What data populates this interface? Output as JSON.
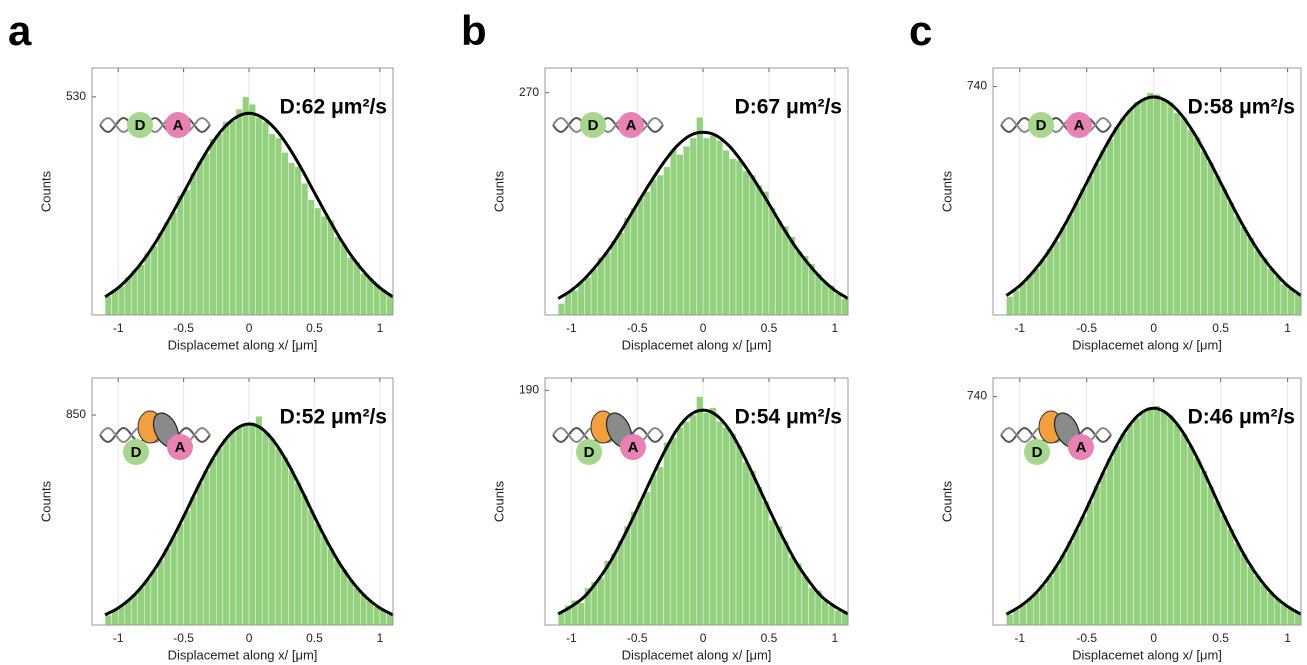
{
  "chart_data": [
    {
      "type": "histogram",
      "panel_label": "a",
      "annotation": "D:62 μm²/s",
      "icon_labels": [
        "D",
        "A"
      ],
      "protein_bound": false,
      "xlabel": "Displacemet along x/ [μm]",
      "ylabel": "Counts",
      "color": "#93d17e",
      "bins": [
        -1.1,
        -1.05,
        -1,
        -0.95,
        -0.9,
        -0.85,
        -0.8,
        -0.75,
        -0.7,
        -0.65,
        -0.6,
        -0.55,
        -0.5,
        -0.45,
        -0.4,
        -0.35,
        -0.3,
        -0.25,
        -0.2,
        -0.15,
        -0.1,
        -0.05,
        0,
        0.05,
        0.1,
        0.15,
        0.2,
        0.25,
        0.3,
        0.35,
        0.4,
        0.45,
        0.5,
        0.55,
        0.6,
        0.65,
        0.7,
        0.75,
        0.8,
        0.85,
        0.9,
        0.95,
        1,
        1.05,
        1.1
      ],
      "values": [
        46,
        62,
        70,
        92,
        108,
        122,
        150,
        168,
        200,
        226,
        250,
        290,
        305,
        345,
        372,
        392,
        428,
        440,
        470,
        472,
        500,
        530,
        512,
        480,
        470,
        440,
        430,
        395,
        370,
        360,
        320,
        280,
        260,
        240,
        230,
        190,
        172,
        140,
        128,
        100,
        90,
        75,
        60,
        50
      ],
      "fit": {
        "x": [
          -1.1,
          -1,
          -0.9,
          -0.8,
          -0.7,
          -0.6,
          -0.5,
          -0.4,
          -0.3,
          -0.2,
          -0.1,
          0,
          0.1,
          0.2,
          0.3,
          0.4,
          0.5,
          0.6,
          0.7,
          0.8,
          0.9,
          1,
          1.1
        ],
        "values": [
          44,
          66,
          97,
          136,
          184,
          239,
          297,
          356,
          409,
          452,
          480,
          490,
          480,
          452,
          409,
          356,
          297,
          239,
          184,
          136,
          97,
          66,
          44
        ],
        "color": "#000000"
      },
      "xlim": [
        -1.2,
        1.1
      ],
      "ylim": [
        0,
        600
      ],
      "xticks": [
        -1,
        -0.5,
        0,
        0.5,
        1
      ],
      "yticks": [
        530
      ],
      "grid": "x"
    },
    {
      "type": "histogram",
      "panel_label": "b",
      "annotation": "D:67 μm²/s",
      "icon_labels": [
        "D",
        "A"
      ],
      "protein_bound": false,
      "xlabel": "Displacemet along x/ [μm]",
      "ylabel": "Counts",
      "color": "#93d17e",
      "bins": [
        -1.1,
        -1.05,
        -1,
        -0.95,
        -0.9,
        -0.85,
        -0.8,
        -0.75,
        -0.7,
        -0.65,
        -0.6,
        -0.55,
        -0.5,
        -0.45,
        -0.4,
        -0.35,
        -0.3,
        -0.25,
        -0.2,
        -0.15,
        -0.1,
        -0.05,
        0,
        0.05,
        0.1,
        0.15,
        0.2,
        0.25,
        0.3,
        0.35,
        0.4,
        0.45,
        0.5,
        0.55,
        0.6,
        0.65,
        0.7,
        0.75,
        0.8,
        0.85,
        0.9,
        0.95,
        1,
        1.05,
        1.1
      ],
      "values": [
        14,
        28,
        30,
        40,
        46,
        56,
        70,
        76,
        90,
        100,
        118,
        130,
        142,
        150,
        165,
        170,
        180,
        200,
        195,
        205,
        215,
        240,
        215,
        218,
        212,
        200,
        190,
        188,
        175,
        170,
        158,
        150,
        130,
        115,
        108,
        95,
        78,
        72,
        62,
        50,
        40,
        36,
        26,
        20
      ],
      "fit": {
        "x": [
          -1.1,
          -1,
          -0.9,
          -0.8,
          -0.7,
          -0.6,
          -0.5,
          -0.4,
          -0.3,
          -0.2,
          -0.1,
          0,
          0.1,
          0.2,
          0.3,
          0.4,
          0.5,
          0.6,
          0.7,
          0.8,
          0.9,
          1,
          1.1
        ],
        "values": [
          20,
          30,
          44,
          62,
          83,
          108,
          135,
          161,
          185,
          205,
          218,
          222,
          218,
          205,
          185,
          161,
          135,
          108,
          83,
          62,
          44,
          30,
          20
        ],
        "color": "#000000"
      },
      "xlim": [
        -1.2,
        1.1
      ],
      "ylim": [
        0,
        300
      ],
      "xticks": [
        -1,
        -0.5,
        0,
        0.5,
        1
      ],
      "yticks": [
        270
      ],
      "grid": "x"
    },
    {
      "type": "histogram",
      "panel_label": "c",
      "annotation": "D:58 μm²/s",
      "icon_labels": [
        "D",
        "A"
      ],
      "protein_bound": false,
      "xlabel": "Displacemet along x/ [μm]",
      "ylabel": "Counts",
      "color": "#93d17e",
      "bins": [
        -1.1,
        -1.05,
        -1,
        -0.95,
        -0.9,
        -0.85,
        -0.8,
        -0.75,
        -0.7,
        -0.65,
        -0.6,
        -0.55,
        -0.5,
        -0.45,
        -0.4,
        -0.35,
        -0.3,
        -0.25,
        -0.2,
        -0.15,
        -0.1,
        -0.05,
        0,
        0.05,
        0.1,
        0.15,
        0.2,
        0.25,
        0.3,
        0.35,
        0.4,
        0.45,
        0.5,
        0.55,
        0.6,
        0.65,
        0.7,
        0.75,
        0.8,
        0.85,
        0.9,
        0.95,
        1,
        1.05,
        1.1
      ],
      "values": [
        60,
        80,
        105,
        130,
        150,
        180,
        215,
        240,
        285,
        325,
        365,
        410,
        450,
        490,
        535,
        570,
        610,
        640,
        665,
        690,
        700,
        720,
        715,
        700,
        690,
        655,
        640,
        600,
        575,
        530,
        495,
        450,
        410,
        365,
        320,
        285,
        250,
        210,
        185,
        150,
        125,
        100,
        85,
        68
      ],
      "fit": {
        "x": [
          -1.1,
          -1,
          -0.9,
          -0.8,
          -0.7,
          -0.6,
          -0.5,
          -0.4,
          -0.3,
          -0.2,
          -0.1,
          0,
          0.1,
          0.2,
          0.3,
          0.4,
          0.5,
          0.6,
          0.7,
          0.8,
          0.9,
          1,
          1.1
        ],
        "values": [
          63,
          95,
          140,
          196,
          265,
          344,
          429,
          513,
          590,
          652,
          692,
          706,
          692,
          652,
          590,
          513,
          429,
          344,
          265,
          196,
          140,
          95,
          63
        ],
        "color": "#000000"
      },
      "xlim": [
        -1.2,
        1.1
      ],
      "ylim": [
        0,
        800
      ],
      "xticks": [
        -1,
        -0.5,
        0,
        0.5,
        1
      ],
      "yticks": [
        740
      ],
      "grid": "x"
    },
    {
      "type": "histogram",
      "annotation": "D:52 μm²/s",
      "icon_labels": [
        "D",
        "A"
      ],
      "protein_bound": true,
      "xlabel": "Displacemet along x/ [μm]",
      "ylabel": "Counts",
      "color": "#93d17e",
      "bins": [
        -1.1,
        -1.05,
        -1,
        -0.95,
        -0.9,
        -0.85,
        -0.8,
        -0.75,
        -0.7,
        -0.65,
        -0.6,
        -0.55,
        -0.5,
        -0.45,
        -0.4,
        -0.35,
        -0.3,
        -0.25,
        -0.2,
        -0.15,
        -0.1,
        -0.05,
        0,
        0.05,
        0.1,
        0.15,
        0.2,
        0.25,
        0.3,
        0.35,
        0.4,
        0.45,
        0.5,
        0.55,
        0.6,
        0.65,
        0.7,
        0.75,
        0.8,
        0.85,
        0.9,
        0.95,
        1,
        1.05,
        1.1
      ],
      "values": [
        40,
        62,
        80,
        100,
        125,
        150,
        185,
        220,
        262,
        310,
        362,
        410,
        462,
        520,
        575,
        625,
        675,
        715,
        755,
        785,
        800,
        815,
        820,
        845,
        780,
        755,
        715,
        680,
        625,
        575,
        525,
        465,
        410,
        360,
        310,
        262,
        225,
        185,
        150,
        125,
        100,
        75,
        60,
        45
      ],
      "fit": {
        "x": [
          -1.1,
          -1,
          -0.9,
          -0.8,
          -0.7,
          -0.6,
          -0.5,
          -0.4,
          -0.3,
          -0.2,
          -0.1,
          0,
          0.1,
          0.2,
          0.3,
          0.4,
          0.5,
          0.6,
          0.7,
          0.8,
          0.9,
          1,
          1.1
        ],
        "values": [
          41,
          69,
          110,
          168,
          243,
          335,
          439,
          549,
          652,
          737,
          794,
          814,
          794,
          737,
          652,
          549,
          439,
          335,
          243,
          168,
          110,
          69,
          41
        ],
        "color": "#000000"
      },
      "xlim": [
        -1.2,
        1.1
      ],
      "ylim": [
        0,
        1000
      ],
      "xticks": [
        -1,
        -0.5,
        0,
        0.5,
        1
      ],
      "yticks": [
        850
      ],
      "grid": "x"
    },
    {
      "type": "histogram",
      "annotation": "D:54 μm²/s",
      "icon_labels": [
        "D",
        "A"
      ],
      "protein_bound": true,
      "xlabel": "Displacemet along x/ [μm]",
      "ylabel": "Counts",
      "color": "#93d17e",
      "bins": [
        -1.1,
        -1.05,
        -1,
        -0.95,
        -0.9,
        -0.85,
        -0.8,
        -0.75,
        -0.7,
        -0.65,
        -0.6,
        -0.55,
        -0.5,
        -0.45,
        -0.4,
        -0.35,
        -0.3,
        -0.25,
        -0.2,
        -0.15,
        -0.1,
        -0.05,
        0,
        0.05,
        0.1,
        0.15,
        0.2,
        0.25,
        0.3,
        0.35,
        0.4,
        0.45,
        0.5,
        0.55,
        0.6,
        0.65,
        0.7,
        0.75,
        0.8,
        0.85,
        0.9,
        0.95,
        1,
        1.05,
        1.1
      ],
      "values": [
        10,
        16,
        20,
        18,
        30,
        35,
        38,
        52,
        58,
        68,
        80,
        92,
        100,
        108,
        122,
        128,
        148,
        152,
        160,
        165,
        170,
        185,
        172,
        176,
        165,
        160,
        155,
        145,
        132,
        125,
        112,
        100,
        85,
        80,
        68,
        55,
        50,
        40,
        30,
        28,
        20,
        16,
        12,
        10
      ],
      "fit": {
        "x": [
          -1.1,
          -1,
          -0.9,
          -0.8,
          -0.7,
          -0.6,
          -0.5,
          -0.4,
          -0.3,
          -0.2,
          -0.1,
          0,
          0.1,
          0.2,
          0.3,
          0.4,
          0.5,
          0.6,
          0.7,
          0.8,
          0.9,
          1,
          1.1
        ],
        "values": [
          9,
          15,
          23,
          36,
          52,
          72,
          94,
          117,
          139,
          158,
          170,
          174,
          170,
          158,
          139,
          117,
          94,
          72,
          52,
          36,
          23,
          15,
          9
        ],
        "color": "#000000"
      },
      "xlim": [
        -1.2,
        1.1
      ],
      "ylim": [
        0,
        200
      ],
      "xticks": [
        -1,
        -0.5,
        0,
        0.5,
        1
      ],
      "yticks": [
        190
      ],
      "grid": "x"
    },
    {
      "type": "histogram",
      "annotation": "D:46 μm²/s",
      "icon_labels": [
        "D",
        "A"
      ],
      "protein_bound": true,
      "xlabel": "Displacemet along x/ [μm]",
      "ylabel": "Counts",
      "color": "#93d17e",
      "bins": [
        -1.1,
        -1.05,
        -1,
        -0.95,
        -0.9,
        -0.85,
        -0.8,
        -0.75,
        -0.7,
        -0.65,
        -0.6,
        -0.55,
        -0.5,
        -0.45,
        -0.4,
        -0.35,
        -0.3,
        -0.25,
        -0.2,
        -0.15,
        -0.1,
        -0.05,
        0,
        0.05,
        0.1,
        0.15,
        0.2,
        0.25,
        0.3,
        0.35,
        0.4,
        0.45,
        0.5,
        0.55,
        0.6,
        0.65,
        0.7,
        0.75,
        0.8,
        0.85,
        0.9,
        0.95,
        1,
        1.05,
        1.1
      ],
      "values": [
        35,
        50,
        68,
        85,
        105,
        130,
        160,
        190,
        228,
        270,
        310,
        352,
        400,
        450,
        495,
        540,
        580,
        620,
        650,
        670,
        690,
        705,
        710,
        690,
        680,
        650,
        620,
        580,
        540,
        500,
        450,
        400,
        355,
        310,
        265,
        230,
        190,
        160,
        130,
        105,
        85,
        65,
        52,
        40
      ],
      "fit": {
        "x": [
          -1.1,
          -1,
          -0.9,
          -0.8,
          -0.7,
          -0.6,
          -0.5,
          -0.4,
          -0.3,
          -0.2,
          -0.1,
          0,
          0.1,
          0.2,
          0.3,
          0.4,
          0.5,
          0.6,
          0.7,
          0.8,
          0.9,
          1,
          1.1
        ],
        "values": [
          35,
          60,
          95,
          145,
          209,
          289,
          378,
          473,
          562,
          636,
          685,
          702,
          685,
          636,
          562,
          473,
          378,
          289,
          209,
          145,
          95,
          60,
          35
        ],
        "color": "#000000"
      },
      "xlim": [
        -1.2,
        1.1
      ],
      "ylim": [
        0,
        800
      ],
      "xticks": [
        -1,
        -0.5,
        0,
        0.5,
        1
      ],
      "yticks": [
        740
      ],
      "grid": "x"
    }
  ]
}
